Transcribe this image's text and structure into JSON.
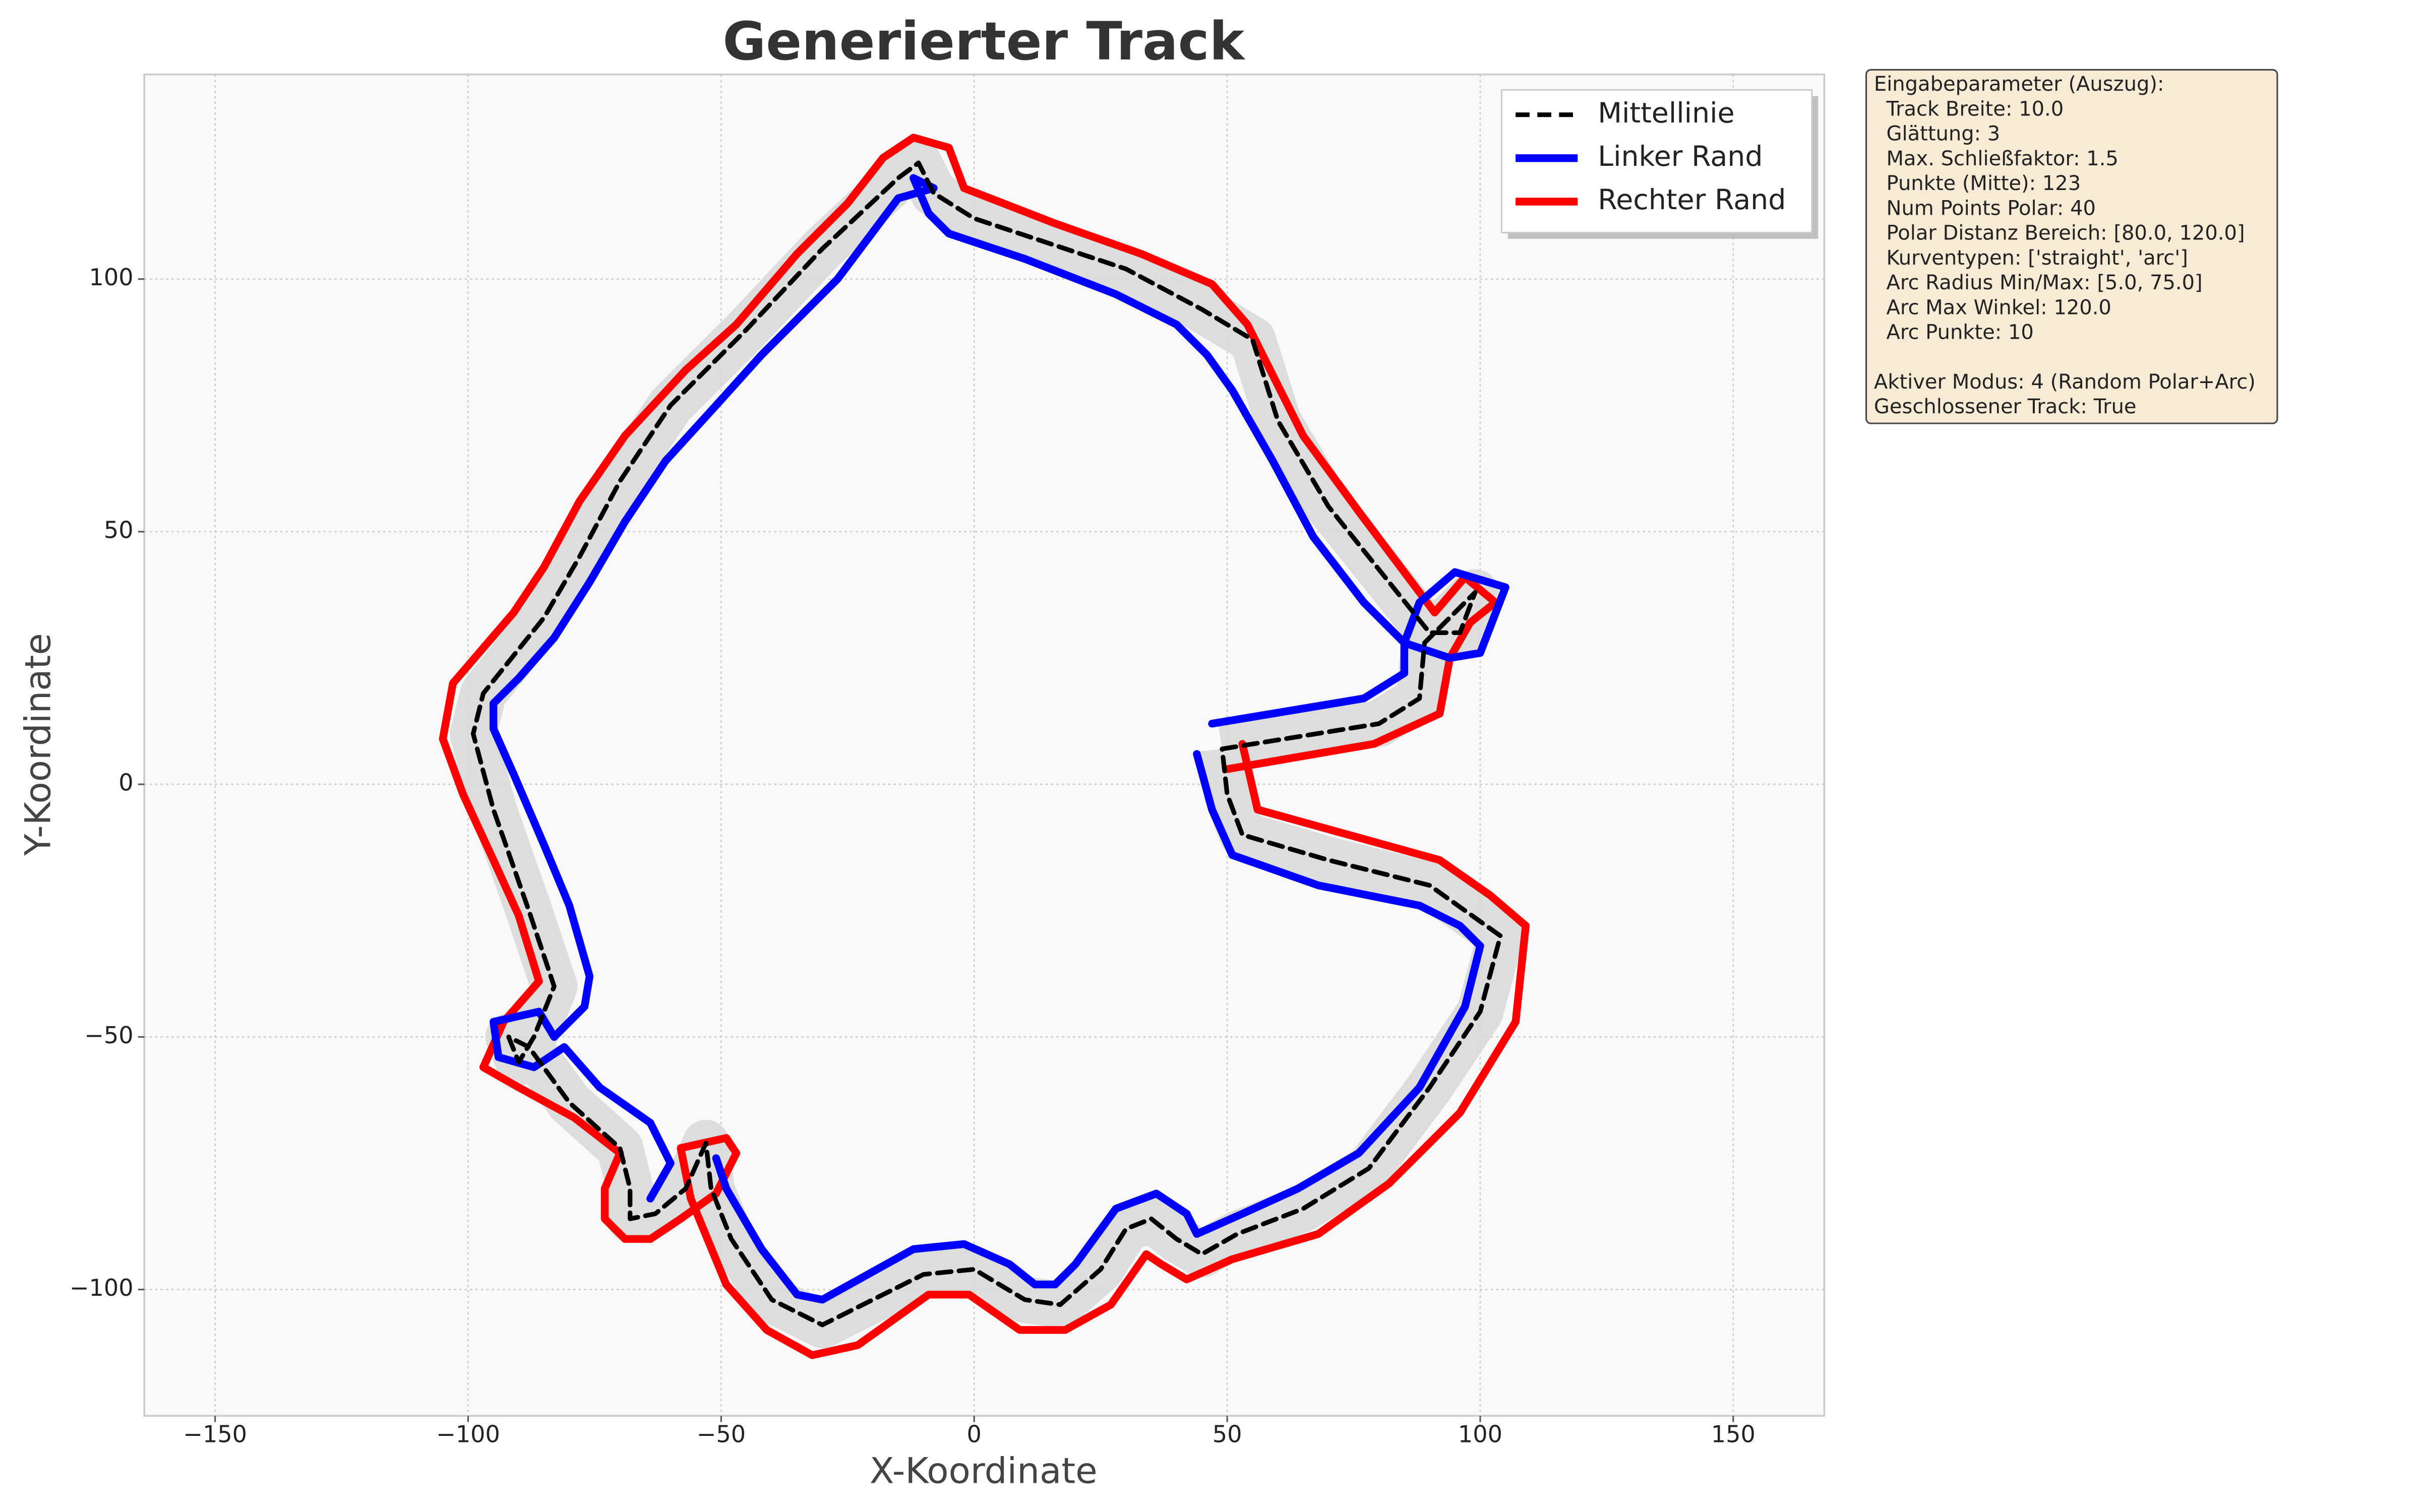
{
  "chart_data": {
    "type": "line",
    "title": "Generierter Track",
    "x_label": "X-Koordinate",
    "y_label": "Y-Koordinate",
    "xlim": [
      -164,
      168
    ],
    "ylim": [
      -125,
      140.5
    ],
    "xticks": [
      {
        "value": -150,
        "label": "−150"
      },
      {
        "value": -100,
        "label": "−100"
      },
      {
        "value": -50,
        "label": "−50"
      },
      0,
      50,
      100,
      150
    ],
    "yticks": [
      {
        "value": -100,
        "label": "−100"
      },
      {
        "value": -50,
        "label": "−50"
      },
      0,
      50,
      100
    ],
    "grid": true,
    "legend": "upper right",
    "series": [
      {
        "name": "Mittellinie",
        "color": "#000000",
        "linestyle": "dashed",
        "x": [
          49,
          80,
          88,
          89,
          95,
          99,
          96,
          90,
          82,
          70,
          60,
          55,
          45,
          30,
          0,
          -8,
          -11,
          -15,
          -30,
          -45,
          -60,
          -70,
          -78,
          -85,
          -97,
          -99,
          -95,
          -88,
          -83,
          -87,
          -90,
          -92,
          -88,
          -80,
          -70,
          -68,
          -68,
          -63,
          -57,
          -53,
          -52,
          -48,
          -40,
          -30,
          -20,
          -10,
          0,
          10,
          17,
          25,
          30,
          35,
          40,
          45,
          52,
          65,
          78,
          90,
          100,
          104,
          90,
          70,
          53,
          50,
          49
        ],
        "y": [
          7,
          12,
          17,
          28,
          34,
          38,
          30,
          30,
          40,
          55,
          72,
          88,
          94,
          102,
          112,
          117,
          123,
          120,
          106,
          90,
          75,
          60,
          45,
          33,
          18,
          10,
          -5,
          -25,
          -40,
          -50,
          -55,
          -50,
          -52,
          -63,
          -72,
          -80,
          -86,
          -85,
          -80,
          -71,
          -80,
          -90,
          -102,
          -107,
          -102,
          -97,
          -96,
          -102,
          -103,
          -96,
          -88,
          -86,
          -90,
          -93,
          -89,
          -84,
          -76,
          -60,
          -45,
          -30,
          -20,
          -15,
          -10,
          -2,
          7
        ]
      },
      {
        "name": "Linker Rand",
        "color": "#0000ff",
        "linestyle": "solid",
        "x": [
          47,
          77,
          85,
          85,
          88,
          95,
          105,
          100,
          94,
          85,
          77,
          67,
          59,
          51,
          46,
          40,
          28,
          10,
          -5,
          -9,
          -12,
          -8,
          -15,
          -27,
          -42,
          -51,
          -61,
          -69,
          -76,
          -83,
          -90,
          -95,
          -95,
          -91,
          -85,
          -80,
          -76,
          -77,
          -83,
          -86,
          -95,
          -94,
          -87,
          -81,
          -74,
          -64,
          -60,
          -64,
          null,
          -51,
          -49,
          -42,
          -35,
          -30,
          -21,
          -12,
          -2,
          7,
          12,
          16,
          20,
          28,
          36,
          42,
          44,
          53,
          64,
          76,
          88,
          97,
          100,
          96,
          88,
          68,
          51,
          47,
          44
        ],
        "y": [
          12,
          17,
          22,
          28,
          36,
          42,
          39,
          26,
          25,
          28,
          36,
          49,
          64,
          78,
          85,
          91,
          97,
          104,
          109,
          113,
          120,
          118,
          116,
          100,
          85,
          75,
          64,
          52,
          40,
          29,
          21,
          16,
          11,
          2,
          -12,
          -24,
          -38,
          -44,
          -50,
          -45,
          -47,
          -54,
          -56,
          -52,
          -60,
          -67,
          -75,
          -82,
          null,
          -74,
          -80,
          -92,
          -101,
          -102,
          -97,
          -92,
          -91,
          -95,
          -99,
          -99,
          -95,
          -84,
          -81,
          -85,
          -89,
          -85,
          -80,
          -73,
          -60,
          -44,
          -32,
          -28,
          -24,
          -20,
          -14,
          -5,
          6
        ]
      },
      {
        "name": "Rechter Rand",
        "color": "#ff0000",
        "linestyle": "solid",
        "x": [
          50,
          79,
          92,
          94,
          98,
          103,
          97,
          91,
          85,
          76,
          65,
          54,
          47,
          33,
          16,
          -2,
          -5,
          -12,
          -18,
          -25,
          -35,
          -47,
          -57,
          -69,
          -78,
          -85,
          -91,
          -103,
          -105,
          -101,
          -95,
          -90,
          -86,
          -93,
          -97,
          -90,
          -79,
          -70,
          -73,
          -73,
          -69,
          -64,
          -58,
          -51,
          -47,
          -49,
          -58,
          -56,
          -49,
          -41,
          -32,
          -23,
          -9,
          -1,
          9,
          18,
          27,
          34,
          37,
          42,
          51,
          68,
          82,
          96,
          107,
          109,
          102,
          92,
          56,
          53
        ],
        "y": [
          3,
          8,
          14,
          25,
          32,
          36,
          41,
          34,
          42,
          54,
          69,
          91,
          99,
          105,
          111,
          118,
          126,
          128,
          124,
          115,
          105,
          91,
          82,
          69,
          56,
          43,
          34,
          20,
          9,
          -2,
          -15,
          -26,
          -39,
          -47,
          -56,
          -60,
          -66,
          -73,
          -80,
          -86,
          -90,
          -90,
          -86,
          -81,
          -73,
          -70,
          -72,
          -82,
          -99,
          -108,
          -113,
          -111,
          -101,
          -101,
          -108,
          -108,
          -103,
          -93,
          -95,
          -98,
          -94,
          -89,
          -79,
          -65,
          -47,
          -28,
          -22,
          -15,
          -5,
          8
        ]
      }
    ],
    "info_box": {
      "heading": "Eingabeparameter (Auszug):",
      "items": [
        "Track Breite: 10.0",
        "Glättung: 3",
        "Max. Schließfaktor: 1.5",
        "Punkte (Mitte): 123",
        "Num Points Polar: 40",
        "Polar Distanz Bereich: [80.0, 120.0]",
        "Kurventypen: ['straight', 'arc']",
        "Arc Radius Min/Max: [5.0, 75.0]",
        "Arc Max Winkel: 120.0",
        "Arc Punkte: 10"
      ],
      "footer": [
        "Aktiver Modus: 4 (Random Polar+Arc)",
        "Geschlossener Track: True"
      ]
    }
  }
}
